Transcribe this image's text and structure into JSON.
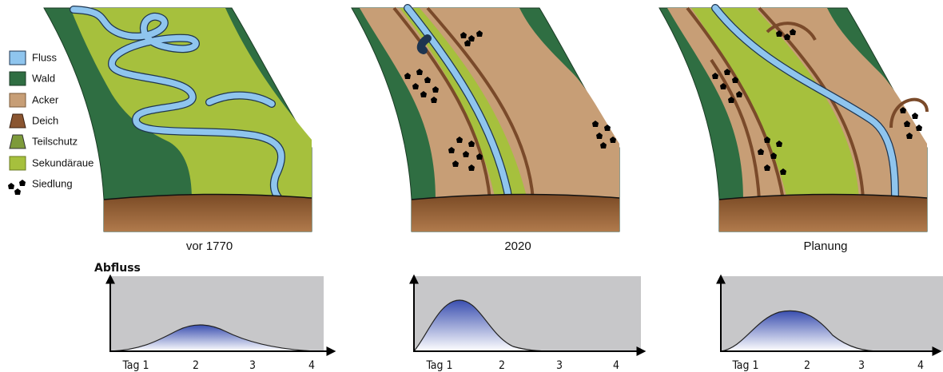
{
  "legend": [
    {
      "label": "Fluss"
    },
    {
      "label": "Wald"
    },
    {
      "label": "Acker"
    },
    {
      "label": "Deich"
    },
    {
      "label": "Teilschutz"
    },
    {
      "label": "Sekundäraue"
    },
    {
      "label": "Siedlung"
    }
  ],
  "panels": [
    {
      "caption": "vor 1770",
      "y_label": "Abfluss",
      "x_labels": [
        "Tag 1",
        "2",
        "3",
        "4"
      ]
    },
    {
      "caption": "2020",
      "x_labels": [
        "Tag 1",
        "2",
        "3",
        "4"
      ]
    },
    {
      "caption": "Planung",
      "x_labels": [
        "Tag 1",
        "2",
        "3",
        "4"
      ]
    }
  ]
}
